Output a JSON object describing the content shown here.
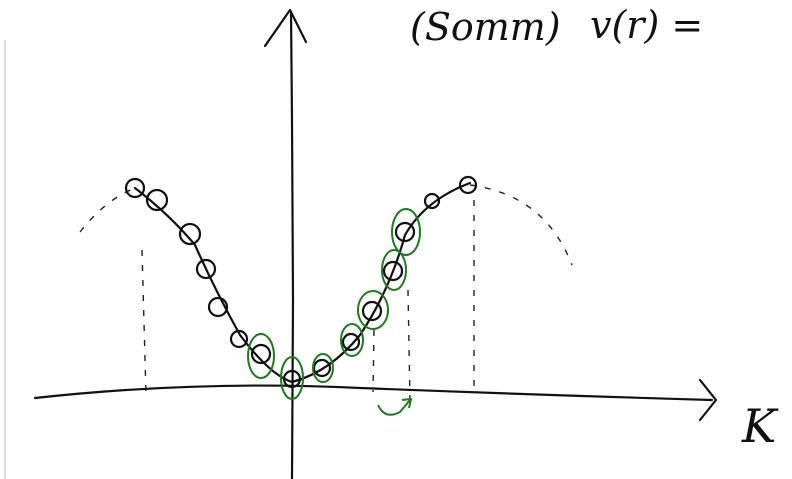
{
  "header": {
    "formula_left": "(Somm)",
    "formula_right": "v(r) ="
  },
  "axis": {
    "x_label": "K"
  }
}
